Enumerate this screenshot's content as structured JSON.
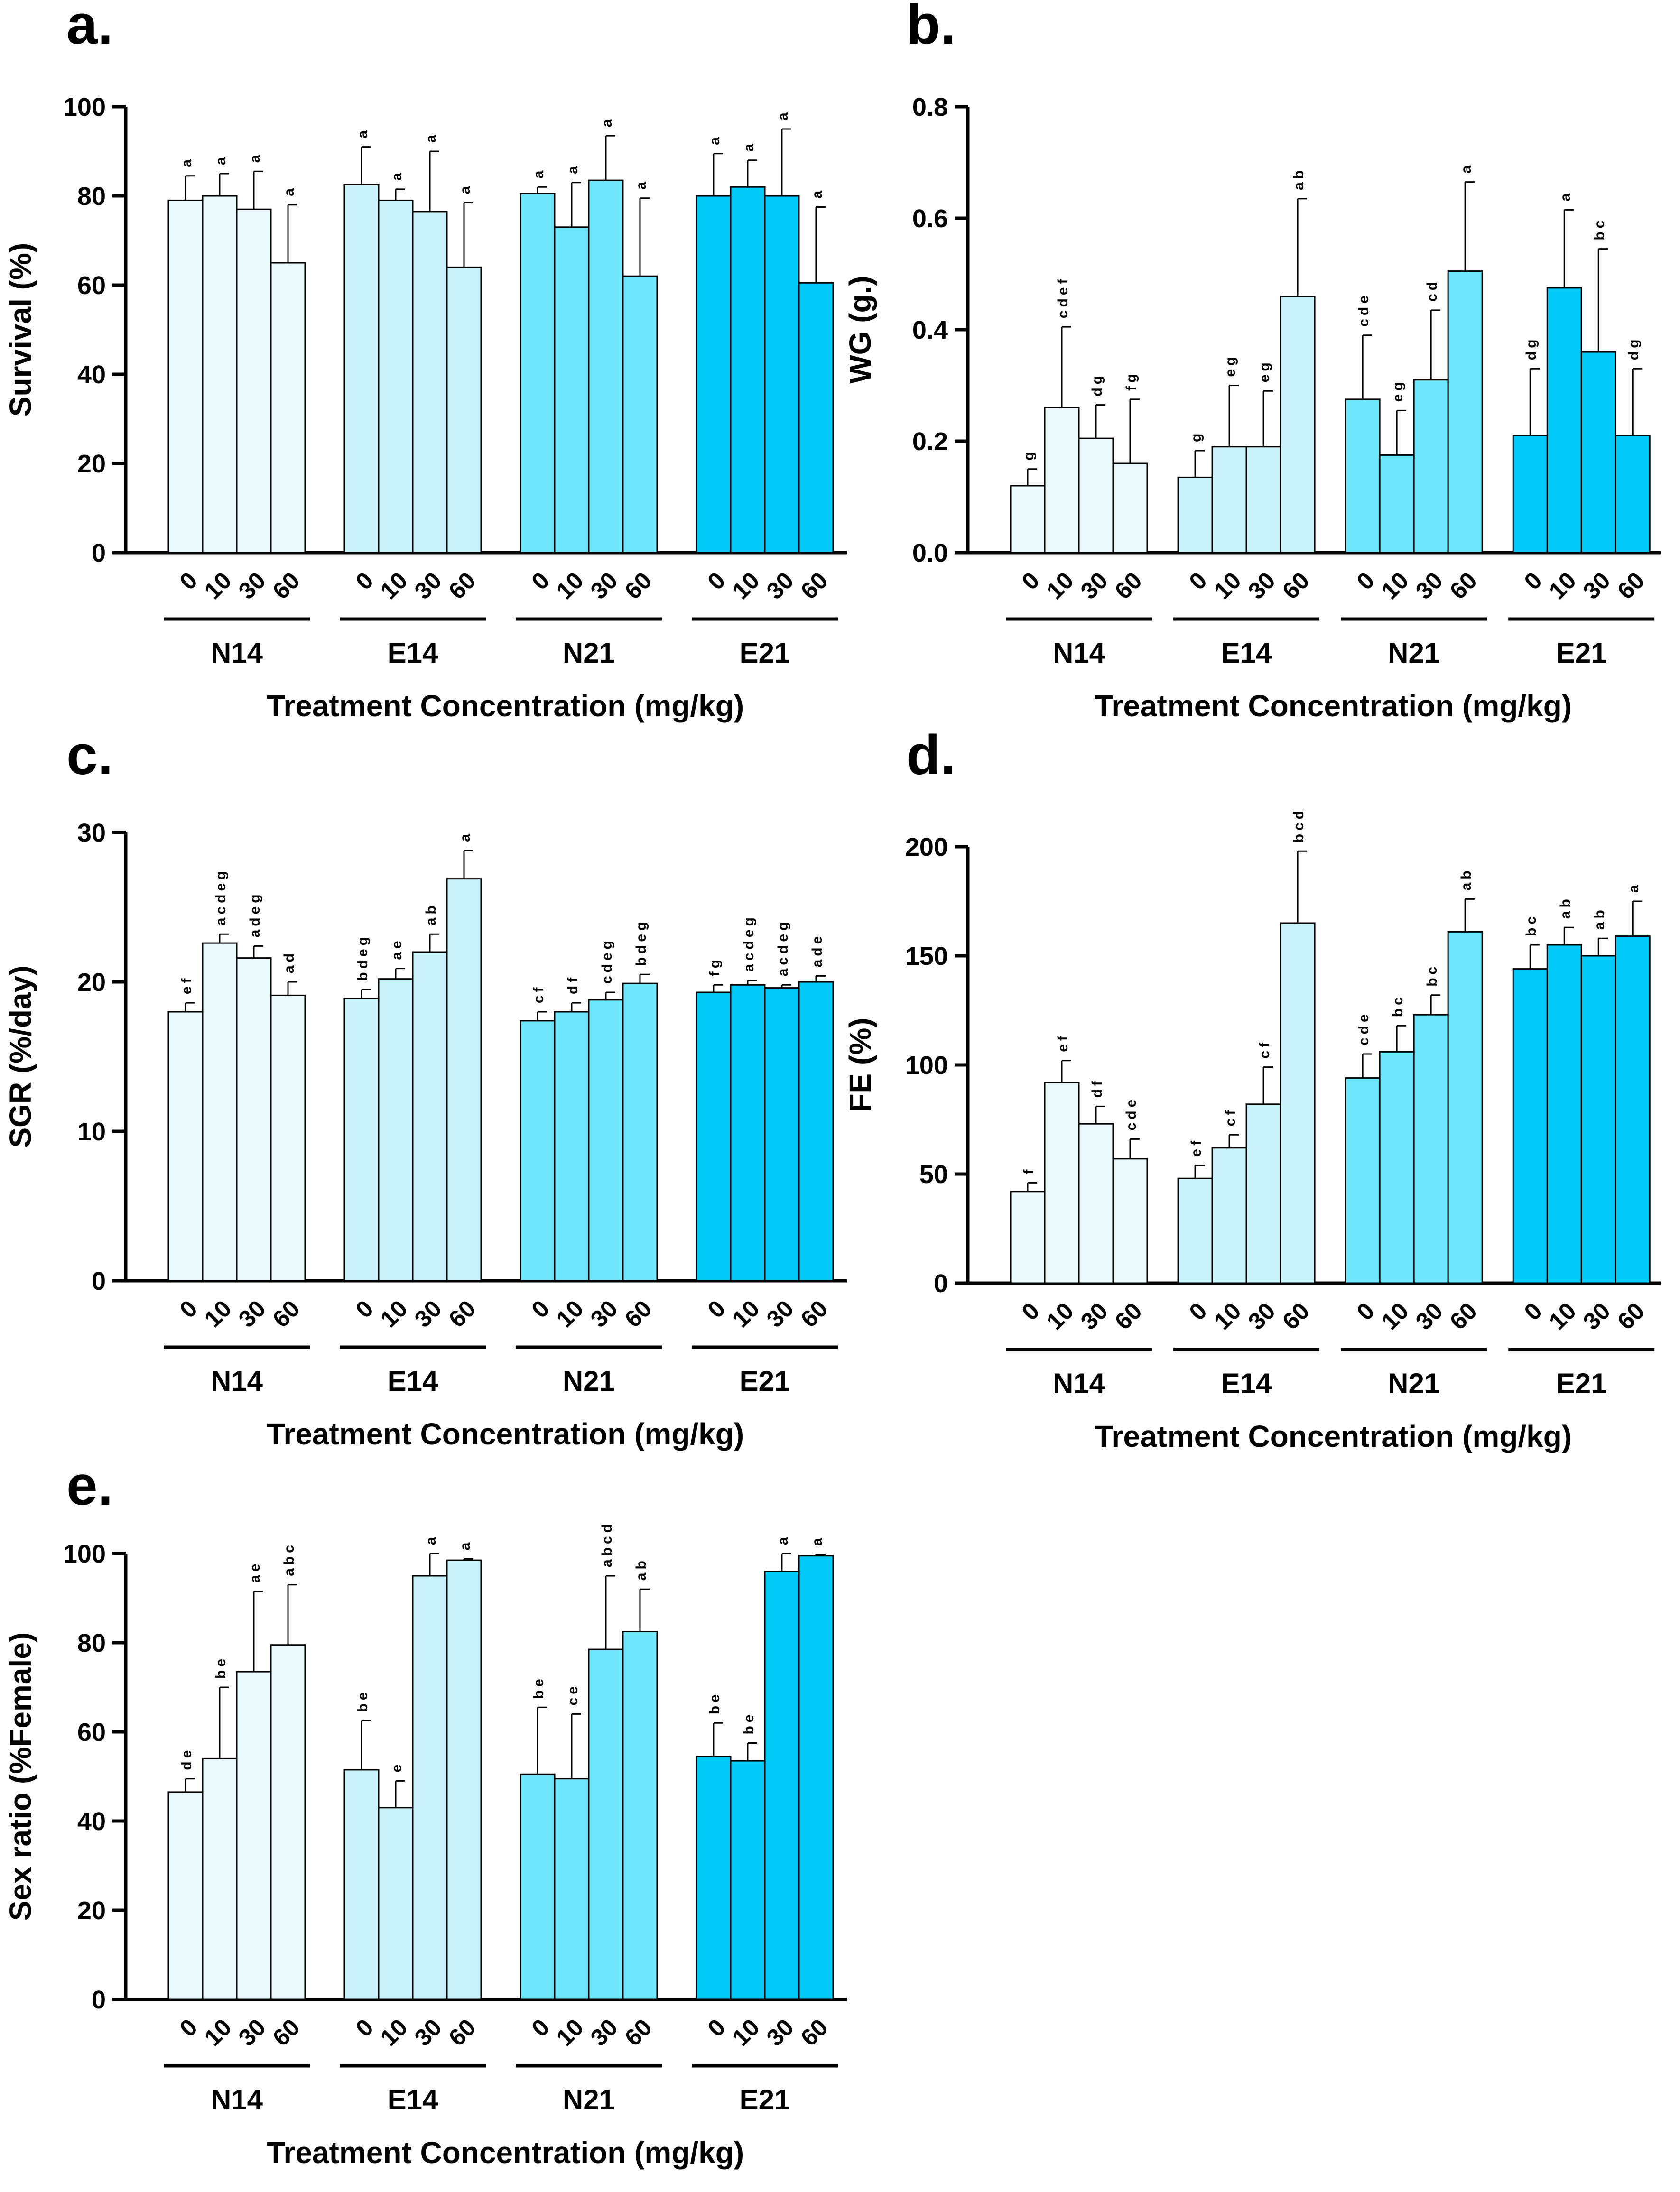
{
  "figure": {
    "groups": [
      "N14",
      "E14",
      "N21",
      "E21"
    ],
    "concentrations": [
      "0",
      "10",
      "30",
      "60"
    ],
    "group_colors": [
      "#eaf9fd",
      "#c8f3fb",
      "#6ee6fb",
      "#00c9f8"
    ],
    "axis_color": "#000000"
  },
  "chart_data": [
    {
      "panel": "a.",
      "type": "bar",
      "ylabel": "Survival (%)",
      "xlabel": "Treatment Concentration (mg/kg)",
      "ylim": [
        0,
        100
      ],
      "yticks": [
        "0",
        "20",
        "40",
        "60",
        "80",
        "100"
      ],
      "ytick_values": [
        0,
        20,
        40,
        60,
        80,
        100
      ],
      "series": [
        {
          "group": "N14",
          "values": [
            79,
            80,
            77,
            65
          ],
          "errors": [
            5.5,
            5,
            8.5,
            13
          ],
          "letters": [
            "a",
            "a",
            "a",
            "a"
          ]
        },
        {
          "group": "E14",
          "values": [
            82.5,
            79,
            76.5,
            64
          ],
          "errors": [
            8.5,
            2.5,
            13.5,
            14.5
          ],
          "letters": [
            "a",
            "a",
            "a",
            "a"
          ]
        },
        {
          "group": "N21",
          "values": [
            80.5,
            73,
            83.5,
            62
          ],
          "errors": [
            1.5,
            10,
            10,
            17.5
          ],
          "letters": [
            "a",
            "a",
            "a",
            "a"
          ]
        },
        {
          "group": "E21",
          "values": [
            80,
            82,
            80,
            60.5
          ],
          "errors": [
            9.5,
            6,
            15,
            17
          ],
          "letters": [
            "a",
            "a",
            "a",
            "a"
          ]
        }
      ]
    },
    {
      "panel": "b.",
      "type": "bar",
      "ylabel": "WG (g.)",
      "xlabel": "Treatment Concentration (mg/kg)",
      "ylim": [
        0,
        0.8
      ],
      "yticks": [
        "0.0",
        "0.2",
        "0.4",
        "0.6",
        "0.8"
      ],
      "ytick_values": [
        0,
        0.2,
        0.4,
        0.6,
        0.8
      ],
      "series": [
        {
          "group": "N14",
          "values": [
            0.12,
            0.26,
            0.205,
            0.16
          ],
          "errors": [
            0.03,
            0.145,
            0.06,
            0.115
          ],
          "letters": [
            "g",
            "cdef",
            "dg",
            "fg"
          ]
        },
        {
          "group": "E14",
          "values": [
            0.135,
            0.19,
            0.19,
            0.46
          ],
          "errors": [
            0.048,
            0.11,
            0.1,
            0.175
          ],
          "letters": [
            "g",
            "eg",
            "eg",
            "ab"
          ]
        },
        {
          "group": "N21",
          "values": [
            0.275,
            0.175,
            0.31,
            0.505
          ],
          "errors": [
            0.115,
            0.08,
            0.125,
            0.16
          ],
          "letters": [
            "cde",
            "eg",
            "cd",
            "a"
          ]
        },
        {
          "group": "E21",
          "values": [
            0.21,
            0.475,
            0.36,
            0.21
          ],
          "errors": [
            0.12,
            0.14,
            0.185,
            0.12
          ],
          "letters": [
            "dg",
            "a",
            "bc",
            "dg"
          ]
        }
      ]
    },
    {
      "panel": "c.",
      "type": "bar",
      "ylabel": "SGR (%/day)",
      "xlabel": "Treatment Concentration (mg/kg)",
      "ylim": [
        0,
        30
      ],
      "yticks": [
        "0",
        "10",
        "20",
        "30"
      ],
      "ytick_values": [
        0,
        10,
        20,
        30
      ],
      "series": [
        {
          "group": "N14",
          "values": [
            18,
            22.6,
            21.6,
            19.1
          ],
          "errors": [
            0.6,
            0.6,
            0.8,
            0.9
          ],
          "letters": [
            "ef",
            "acdeg",
            "adeg",
            "ad"
          ]
        },
        {
          "group": "E14",
          "values": [
            18.9,
            20.2,
            22,
            26.9
          ],
          "errors": [
            0.6,
            0.7,
            1.2,
            1.9
          ],
          "letters": [
            "bdeg",
            "ae",
            "ab",
            "a"
          ]
        },
        {
          "group": "N21",
          "values": [
            17.4,
            18,
            18.8,
            19.9
          ],
          "errors": [
            0.6,
            0.6,
            0.5,
            0.6
          ],
          "letters": [
            "cf",
            "df",
            "cdeg",
            "bdeg"
          ]
        },
        {
          "group": "E21",
          "values": [
            19.3,
            19.8,
            19.6,
            20
          ],
          "errors": [
            0.5,
            0.3,
            0.2,
            0.4
          ],
          "letters": [
            "fg",
            "acdeg",
            "acdeg",
            "ade"
          ]
        }
      ]
    },
    {
      "panel": "d.",
      "type": "bar",
      "ylabel": "FE (%)",
      "xlabel": "Treatment Concentration (mg/kg)",
      "ylim": [
        0,
        200
      ],
      "yticks": [
        "0",
        "50",
        "100",
        "150",
        "200"
      ],
      "ytick_values": [
        0,
        50,
        100,
        150,
        200
      ],
      "series": [
        {
          "group": "N14",
          "values": [
            42,
            92,
            73,
            57
          ],
          "errors": [
            4,
            10,
            8,
            9
          ],
          "letters": [
            "f",
            "ef",
            "df",
            "cde"
          ]
        },
        {
          "group": "E14",
          "values": [
            48,
            62,
            82,
            165
          ],
          "errors": [
            6,
            6,
            17,
            33
          ],
          "letters": [
            "ef",
            "cf",
            "cf",
            "bcd"
          ]
        },
        {
          "group": "N21",
          "values": [
            94,
            106,
            123,
            161
          ],
          "errors": [
            11,
            12,
            9,
            15
          ],
          "letters": [
            "cde",
            "bc",
            "bc",
            "ab"
          ]
        },
        {
          "group": "E21",
          "values": [
            144,
            155,
            150,
            159
          ],
          "errors": [
            11,
            8,
            8,
            16
          ],
          "letters": [
            "bc",
            "ab",
            "ab",
            "a"
          ]
        }
      ]
    },
    {
      "panel": "e.",
      "type": "bar",
      "ylabel": "Sex ratio (%Female)",
      "xlabel": "Treatment Concentration (mg/kg)",
      "ylim": [
        0,
        100
      ],
      "yticks": [
        "0",
        "20",
        "40",
        "60",
        "80",
        "100"
      ],
      "ytick_values": [
        0,
        20,
        40,
        60,
        80,
        100
      ],
      "series": [
        {
          "group": "N14",
          "values": [
            46.5,
            54,
            73.5,
            79.5
          ],
          "errors": [
            3,
            16,
            18,
            13.5
          ],
          "letters": [
            "de",
            "be",
            "ae",
            "abc"
          ]
        },
        {
          "group": "E14",
          "values": [
            51.5,
            43,
            95,
            98.5
          ],
          "errors": [
            11,
            6,
            5,
            0.3
          ],
          "letters": [
            "be",
            "e",
            "a",
            "a"
          ]
        },
        {
          "group": "N21",
          "values": [
            50.5,
            49.5,
            78.5,
            82.5
          ],
          "errors": [
            15,
            14.5,
            16.5,
            9.5
          ],
          "letters": [
            "be",
            "ce",
            "abcd",
            "ab"
          ]
        },
        {
          "group": "E21",
          "values": [
            54.5,
            53.5,
            96,
            99.5
          ],
          "errors": [
            7.5,
            4,
            4,
            0.3
          ],
          "letters": [
            "be",
            "be",
            "a",
            "a"
          ]
        }
      ]
    }
  ]
}
